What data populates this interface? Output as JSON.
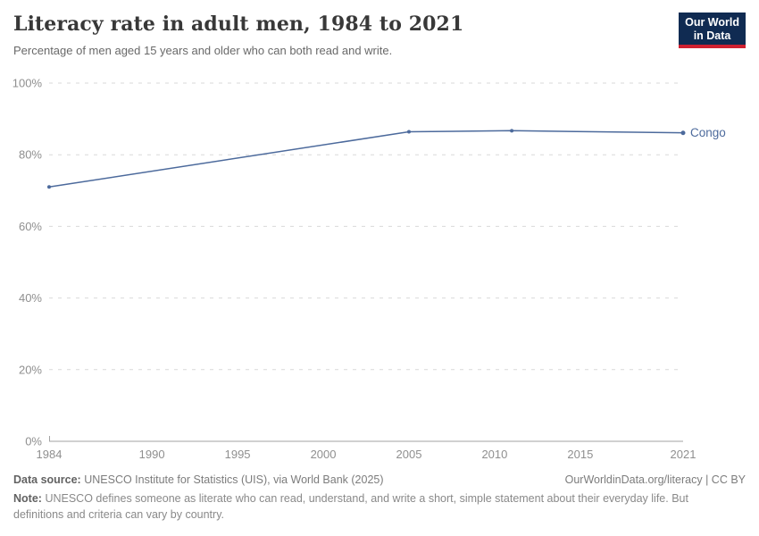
{
  "header": {
    "title": "Literacy rate in adult men, 1984 to 2021",
    "subtitle": "Percentage of men aged 15 years and older who can both read and write."
  },
  "logo": {
    "line1": "Our World",
    "line2": "in Data",
    "bg_color": "#102b52",
    "accent_color": "#cf2030"
  },
  "chart_data": {
    "type": "line",
    "title": "Literacy rate in adult men, 1984 to 2021",
    "xlabel": "",
    "ylabel": "",
    "xlim": [
      1984,
      2021
    ],
    "ylim": [
      0,
      100
    ],
    "x_ticks": [
      1984,
      1990,
      1995,
      2000,
      2005,
      2010,
      2015,
      2021
    ],
    "y_ticks": [
      0,
      20,
      40,
      60,
      80,
      100
    ],
    "y_tick_suffix": "%",
    "grid": "horizontal-dashed",
    "legend_position": "end-of-line-label",
    "series": [
      {
        "name": "Congo",
        "color": "#4C6A9C",
        "points": [
          {
            "x": 1984,
            "y": 71.0
          },
          {
            "x": 2005,
            "y": 86.4
          },
          {
            "x": 2011,
            "y": 86.7
          },
          {
            "x": 2021,
            "y": 86.1
          }
        ]
      }
    ],
    "colors": {
      "gridline": "#d9d9d9",
      "axis_line": "#a3a3a3",
      "tick_label": "#8f8f8f"
    }
  },
  "footer": {
    "datasource_label": "Data source:",
    "datasource_text": "UNESCO Institute for Statistics (UIS), via World Bank (2025)",
    "link_text": "OurWorldinData.org/literacy | CC BY",
    "note_label": "Note:",
    "note_text": "UNESCO defines someone as literate who can read, understand, and write a short, simple statement about their everyday life. But definitions and criteria can vary by country."
  }
}
